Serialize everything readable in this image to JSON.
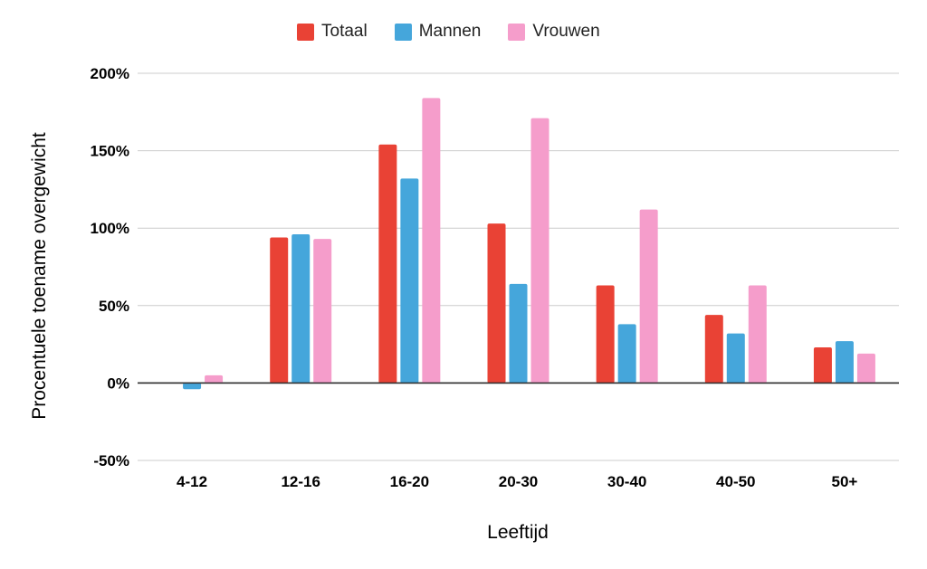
{
  "chart_data": {
    "type": "bar",
    "title": "",
    "xlabel": "Leeftijd",
    "ylabel": "Procentuele toename overgewicht",
    "categories": [
      "4-12",
      "12-16",
      "16-20",
      "20-30",
      "30-40",
      "40-50",
      "50+"
    ],
    "series": [
      {
        "name": "Totaal",
        "color": "#e94235",
        "values": [
          0,
          94,
          154,
          103,
          63,
          44,
          23
        ]
      },
      {
        "name": "Mannen",
        "color": "#45a6db",
        "values": [
          -4,
          96,
          132,
          64,
          38,
          32,
          27
        ]
      },
      {
        "name": "Vrouwen",
        "color": "#f59dcb",
        "values": [
          5,
          93,
          184,
          171,
          112,
          63,
          19
        ]
      }
    ],
    "ylim": [
      -50,
      200
    ],
    "yticks": [
      -50,
      0,
      50,
      100,
      150,
      200
    ],
    "ytick_labels": [
      "-50%",
      "0%",
      "50%",
      "100%",
      "150%",
      "200%"
    ],
    "legend_position": "top-center",
    "grid": true
  }
}
